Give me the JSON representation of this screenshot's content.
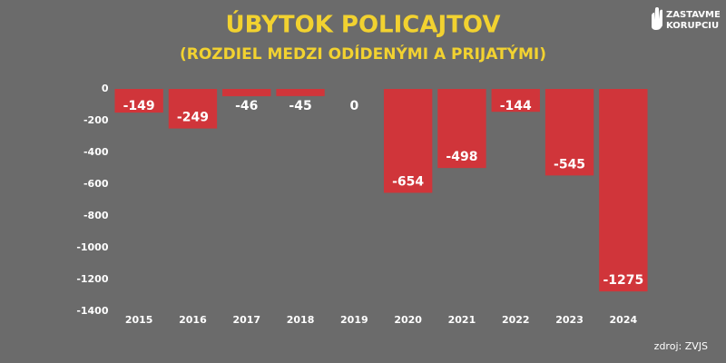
{
  "chart_data": {
    "type": "bar",
    "title": "ÚBYTOK POLICAJTOV",
    "subtitle": "(ROZDIEL MEDZI ODÍDENÝMI A PRIJATÝMI)",
    "categories": [
      "2015",
      "2016",
      "2017",
      "2018",
      "2019",
      "2020",
      "2021",
      "2022",
      "2023",
      "2024"
    ],
    "values": [
      -149,
      -249,
      -46,
      -45,
      0,
      -654,
      -498,
      -144,
      -545,
      -1275
    ],
    "color": "#d0353a",
    "ylim": [
      -1400,
      0
    ],
    "yticks": [
      0,
      -200,
      -400,
      -600,
      -800,
      -1000,
      -1200,
      -1400
    ],
    "grid": false,
    "source": "zdroj: ZVJS"
  },
  "logo": {
    "line1": "ZASTAVME",
    "line2": "KORUPCIU"
  }
}
